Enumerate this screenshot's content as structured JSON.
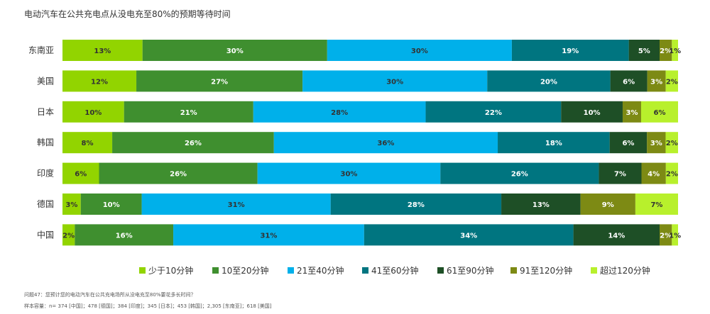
{
  "chart_data": {
    "type": "bar",
    "orientation": "horizontal",
    "stacked": true,
    "title": "电动汽车在公共充电点从没电充至80%的预期等待时间",
    "categories": [
      "东南亚",
      "美国",
      "日本",
      "韩国",
      "印度",
      "德国",
      "中国"
    ],
    "series": [
      {
        "name": "少于10分钟",
        "color": "#92d400",
        "label_color": "#333333",
        "values": [
          13,
          12,
          10,
          8,
          6,
          3,
          2
        ]
      },
      {
        "name": "10至20分钟",
        "color": "#3f8f2f",
        "label_color": "#ffffff",
        "values": [
          30,
          27,
          21,
          26,
          26,
          10,
          16
        ]
      },
      {
        "name": "21至40分钟",
        "color": "#00b0ea",
        "label_color": "#333333",
        "values": [
          30,
          30,
          28,
          36,
          30,
          31,
          31
        ]
      },
      {
        "name": "41至60分钟",
        "color": "#007580",
        "label_color": "#ffffff",
        "values": [
          19,
          20,
          22,
          18,
          26,
          28,
          34
        ]
      },
      {
        "name": "61至90分钟",
        "color": "#1e4f26",
        "label_color": "#ffffff",
        "values": [
          5,
          6,
          10,
          6,
          7,
          13,
          14
        ]
      },
      {
        "name": "91至120分钟",
        "color": "#7d8a14",
        "label_color": "#ffffff",
        "values": [
          2,
          3,
          3,
          3,
          4,
          9,
          2
        ]
      },
      {
        "name": "超过120分钟",
        "color": "#b8f02c",
        "label_color": "#333333",
        "values": [
          1,
          2,
          6,
          2,
          2,
          7,
          1
        ]
      }
    ],
    "value_format": "{v}%",
    "legend_position": "bottom",
    "grid": false
  },
  "footnote": "问题47：您预计您的电动汽车在公共充电场所从没电充至80%要花多长时间？",
  "sample_size": "样本容量：n= 374 [中国]；478 [德国]；384 [印度]；345 [日本]；453 [韩国]；2,305 [东南亚]；618 [美国]"
}
